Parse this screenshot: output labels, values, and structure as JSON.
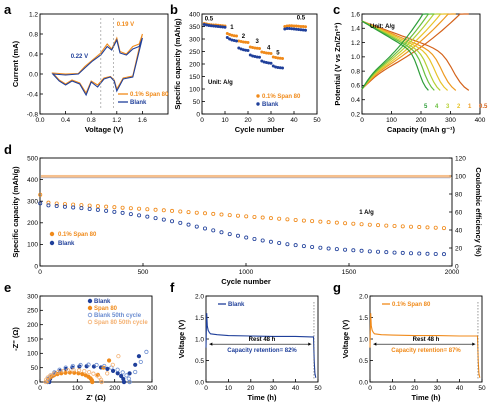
{
  "colors": {
    "blank": "#1f3f9a",
    "span80": "#f08a1a",
    "blank_light": "#6a8cd0",
    "span80_light": "#f4b070"
  },
  "chart_data": [
    {
      "id": "a",
      "type": "line",
      "label": "a",
      "xlabel": "Voltage (V)",
      "ylabel": "Current (mA)",
      "xlim": [
        0,
        2.0
      ],
      "ylim": [
        -0.8,
        1.2
      ],
      "xticks": [
        "0.0",
        "0.4",
        "0.8",
        "1.2",
        "1.6"
      ],
      "xtick_values": [
        0,
        0.4,
        0.8,
        1.2,
        1.6
      ],
      "yticks": [
        "-0.8",
        "-0.4",
        "0.0",
        "0.4",
        "0.8",
        "1.2"
      ],
      "ytick_values": [
        -0.8,
        -0.4,
        0,
        0.4,
        0.8,
        1.2
      ],
      "annotations": [
        "0.19 V",
        "0.22 V"
      ],
      "legend": [
        "0.1% Span 80",
        "Blank"
      ],
      "series": [
        {
          "name": "0.1% Span 80",
          "color_key": "span80",
          "x": [
            0.2,
            0.4,
            0.6,
            0.7,
            0.82,
            0.95,
            1.05,
            1.12,
            1.2,
            1.25,
            1.35,
            1.45,
            1.55,
            1.6,
            1.45,
            1.3,
            1.2,
            1.16,
            1.1,
            1.0,
            0.9,
            0.8,
            0.72,
            0.62,
            0.5,
            0.4,
            0.3,
            0.2
          ],
          "y": [
            0.02,
            0.0,
            0.01,
            0.15,
            0.28,
            0.42,
            0.6,
            0.5,
            0.72,
            0.45,
            0.4,
            0.55,
            0.6,
            0.8,
            -0.04,
            -0.08,
            -0.3,
            -0.12,
            -0.05,
            -0.08,
            -0.22,
            -0.14,
            -0.38,
            -0.18,
            -0.12,
            -0.2,
            -0.12,
            0.02
          ]
        },
        {
          "name": "Blank",
          "color_key": "blank",
          "x": [
            0.2,
            0.4,
            0.6,
            0.7,
            0.82,
            0.95,
            1.05,
            1.12,
            1.2,
            1.25,
            1.35,
            1.45,
            1.55,
            1.6,
            1.45,
            1.3,
            1.2,
            1.16,
            1.1,
            1.0,
            0.9,
            0.8,
            0.72,
            0.62,
            0.5,
            0.4,
            0.3,
            0.2
          ],
          "y": [
            0.0,
            -0.02,
            0.0,
            0.12,
            0.26,
            0.38,
            0.55,
            0.48,
            0.68,
            0.42,
            0.38,
            0.5,
            0.55,
            0.72,
            -0.06,
            -0.1,
            -0.34,
            -0.14,
            -0.06,
            -0.1,
            -0.26,
            -0.16,
            -0.42,
            -0.2,
            -0.14,
            -0.22,
            -0.14,
            0.0
          ]
        }
      ]
    },
    {
      "id": "b",
      "type": "scatter",
      "label": "b",
      "xlabel": "Cycle number",
      "ylabel": "Specific capacity (mAh/g)",
      "xlim": [
        0,
        50
      ],
      "ylim": [
        0,
        400
      ],
      "xticks": [
        "0",
        "10",
        "20",
        "30",
        "40",
        "50"
      ],
      "xtick_values": [
        0,
        10,
        20,
        30,
        40,
        50
      ],
      "yticks": [
        "0",
        "50",
        "100",
        "150",
        "200",
        "250",
        "300",
        "350",
        "400"
      ],
      "ytick_values": [
        0,
        50,
        100,
        150,
        200,
        250,
        300,
        350,
        400
      ],
      "unit_note": "Unit: A/g",
      "rate_labels": [
        {
          "text": "0.5",
          "x": 3,
          "y": 375
        },
        {
          "text": "1",
          "x": 13,
          "y": 340
        },
        {
          "text": "2",
          "x": 18,
          "y": 305
        },
        {
          "text": "3",
          "x": 24,
          "y": 285
        },
        {
          "text": "4",
          "x": 29,
          "y": 258
        },
        {
          "text": "5",
          "x": 33,
          "y": 238
        },
        {
          "text": "0.5",
          "x": 43,
          "y": 378
        }
      ],
      "legend": [
        "0.1% Span 80",
        "Blank"
      ],
      "series": [
        {
          "name": "0.1% Span 80",
          "color_key": "span80",
          "x": [
            1,
            2,
            3,
            4,
            5,
            6,
            7,
            8,
            9,
            10,
            11,
            12,
            13,
            14,
            15,
            16,
            17,
            18,
            19,
            20,
            21,
            22,
            23,
            24,
            25,
            26,
            27,
            28,
            29,
            30,
            31,
            32,
            33,
            34,
            35,
            36,
            37,
            38,
            39,
            40,
            41,
            42,
            43,
            44,
            45
          ],
          "y": [
            362,
            360,
            358,
            357,
            356,
            356,
            355,
            354,
            353,
            352,
            322,
            318,
            315,
            313,
            312,
            292,
            290,
            288,
            287,
            286,
            268,
            266,
            264,
            263,
            262,
            248,
            246,
            244,
            243,
            242,
            228,
            226,
            224,
            223,
            222,
            350,
            352,
            353,
            353,
            352,
            352,
            351,
            350,
            350,
            349
          ]
        },
        {
          "name": "Blank",
          "color_key": "blank",
          "x": [
            1,
            2,
            3,
            4,
            5,
            6,
            7,
            8,
            9,
            10,
            11,
            12,
            13,
            14,
            15,
            16,
            17,
            18,
            19,
            20,
            21,
            22,
            23,
            24,
            25,
            26,
            27,
            28,
            29,
            30,
            31,
            32,
            33,
            34,
            35,
            36,
            37,
            38,
            39,
            40,
            41,
            42,
            43,
            44,
            45
          ],
          "y": [
            358,
            356,
            354,
            353,
            352,
            351,
            350,
            349,
            348,
            347,
            306,
            300,
            296,
            294,
            292,
            264,
            260,
            257,
            255,
            254,
            236,
            232,
            230,
            228,
            227,
            212,
            208,
            206,
            204,
            203,
            192,
            188,
            186,
            185,
            184,
            340,
            342,
            342,
            341,
            340,
            339,
            338,
            337,
            336,
            335
          ]
        }
      ]
    },
    {
      "id": "c",
      "type": "line",
      "label": "c",
      "xlabel": "Capacity (mAh g⁻¹)",
      "ylabel": "Potential (V vs Zn/Zn²⁺)",
      "xlim": [
        0,
        400
      ],
      "ylim": [
        0.2,
        1.6
      ],
      "xticks": [
        "0",
        "100",
        "200",
        "300",
        "400"
      ],
      "xtick_values": [
        0,
        100,
        200,
        300,
        400
      ],
      "yticks": [
        "0.2",
        "0.4",
        "0.6",
        "0.8",
        "1.0",
        "1.2",
        "1.4",
        "1.6"
      ],
      "ytick_values": [
        0.2,
        0.4,
        0.6,
        0.8,
        1.0,
        1.2,
        1.4,
        1.6
      ],
      "unit_note": "Unit: A/g",
      "rate_labels": [
        "5",
        "4",
        "3",
        "2",
        "1",
        "0.5"
      ],
      "series": [
        {
          "name": "0.5",
          "color": "#d4621a",
          "cap": 362
        },
        {
          "name": "1",
          "color": "#ee9a20",
          "cap": 318
        },
        {
          "name": "2",
          "color": "#e8c42a",
          "cap": 290
        },
        {
          "name": "3",
          "color": "#b6d036",
          "cap": 265
        },
        {
          "name": "4",
          "color": "#6ac040",
          "cap": 245
        },
        {
          "name": "5",
          "color": "#2e9e3a",
          "cap": 225
        }
      ]
    },
    {
      "id": "d",
      "type": "scatter",
      "label": "d",
      "xlabel": "Cycle number",
      "ylabel": "Specific capacity (mAh/g)",
      "y2label": "Coulombic efficiency (%)",
      "xlim": [
        0,
        2000
      ],
      "ylim": [
        0,
        500
      ],
      "y2lim": [
        0,
        120
      ],
      "xticks": [
        "0",
        "500",
        "1000",
        "1500",
        "2000"
      ],
      "xtick_values": [
        0,
        500,
        1000,
        1500,
        2000
      ],
      "yticks": [
        "0",
        "100",
        "200",
        "300",
        "400",
        "500"
      ],
      "ytick_values": [
        0,
        100,
        200,
        300,
        400,
        500
      ],
      "y2ticks": [
        "0",
        "20",
        "40",
        "60",
        "80",
        "100",
        "120"
      ],
      "y2tick_values": [
        0,
        20,
        40,
        60,
        80,
        100,
        120
      ],
      "rate_note": "1 A/g",
      "legend": [
        "0.1% Span 80",
        "Blank"
      ],
      "series": [
        {
          "name": "0.1% Span 80",
          "color_key": "span80",
          "x": [
            1,
            20,
            50,
            100,
            200,
            300,
            400,
            500,
            600,
            700,
            800,
            900,
            1000,
            1100,
            1200,
            1300,
            1400,
            1500,
            1600,
            1700,
            1800,
            1900,
            2000
          ],
          "y": [
            330,
            296,
            292,
            288,
            282,
            276,
            270,
            264,
            258,
            251,
            244,
            237,
            230,
            223,
            216,
            209,
            203,
            197,
            191,
            186,
            182,
            178,
            174
          ]
        },
        {
          "name": "Blank",
          "color_key": "blank",
          "x": [
            1,
            20,
            50,
            100,
            200,
            300,
            400,
            500,
            600,
            700,
            800,
            900,
            1000,
            1100,
            1200,
            1300,
            1400,
            1500,
            1600,
            1700,
            1800,
            1900,
            2000
          ],
          "y": [
            290,
            282,
            280,
            276,
            268,
            258,
            246,
            232,
            215,
            196,
            174,
            152,
            132,
            115,
            101,
            90,
            81,
            74,
            68,
            63,
            59,
            56,
            54
          ]
        },
        {
          "name": "CE",
          "color_key": "span80_light",
          "y2": 99.5
        }
      ]
    },
    {
      "id": "e",
      "type": "scatter",
      "label": "e",
      "xlabel": "Z' (Ω)",
      "ylabel": "-Z'' (Ω)",
      "xlim": [
        0,
        300
      ],
      "ylim": [
        0,
        300
      ],
      "xticks": [
        "0",
        "100",
        "200",
        "300"
      ],
      "xtick_values": [
        0,
        100,
        200,
        300
      ],
      "yticks": [
        "0",
        "50",
        "100",
        "150",
        "200",
        "250",
        "300"
      ],
      "ytick_values": [
        0,
        50,
        100,
        150,
        200,
        250,
        300
      ],
      "legend": [
        "Blank",
        "Span 80",
        "Blank 50th cycle",
        "Span 80 50th cycle"
      ],
      "series": [
        {
          "name": "Blank",
          "color_key": "blank",
          "filled": true,
          "center": 125,
          "radius": 100,
          "tail": [
            [
              225,
              0
            ],
            [
              240,
              30
            ],
            [
              255,
              60
            ],
            [
              265,
              90
            ]
          ]
        },
        {
          "name": "Span 80",
          "color_key": "span80",
          "filled": true,
          "center": 80,
          "radius": 60,
          "tail": [
            [
              140,
              0
            ],
            [
              155,
              25
            ],
            [
              170,
              50
            ],
            [
              185,
              75
            ]
          ]
        },
        {
          "name": "Blank 50th cycle",
          "color_key": "blank_light",
          "filled": false,
          "center": 130,
          "radius": 110,
          "tail": [
            [
              240,
              0
            ],
            [
              255,
              35
            ],
            [
              270,
              70
            ],
            [
              285,
              105
            ]
          ]
        },
        {
          "name": "Span 80 50th cycle",
          "color_key": "span80_light",
          "filled": false,
          "center": 90,
          "radius": 75,
          "tail": [
            [
              165,
              0
            ],
            [
              180,
              30
            ],
            [
              195,
              60
            ],
            [
              210,
              90
            ]
          ]
        }
      ]
    },
    {
      "id": "f",
      "type": "line",
      "label": "f",
      "xlabel": "Time (h)",
      "ylabel": "Voltage (V)",
      "xlim": [
        0,
        50
      ],
      "ylim": [
        0,
        2.0
      ],
      "xticks": [
        "0",
        "10",
        "20",
        "30",
        "40",
        "50"
      ],
      "xtick_values": [
        0,
        10,
        20,
        30,
        40,
        50
      ],
      "yticks": [
        "0.0",
        "0.5",
        "1.0",
        "1.5",
        "2.0"
      ],
      "ytick_values": [
        0,
        0.5,
        1.0,
        1.5,
        2.0
      ],
      "legend": [
        "Blank"
      ],
      "rest_note": "Rest 48 h",
      "retention_note": "Capacity retention= 82%",
      "series": [
        {
          "name": "Blank",
          "color_key": "blank",
          "x": [
            0,
            0.3,
            0.6,
            1.0,
            1.5,
            2,
            5,
            10,
            20,
            30,
            40,
            47,
            48,
            48.3,
            48.6,
            49
          ],
          "y": [
            0.8,
            1.6,
            1.3,
            1.2,
            1.15,
            1.12,
            1.1,
            1.08,
            1.07,
            1.06,
            1.06,
            1.05,
            1.05,
            0.5,
            0.2,
            0.1
          ]
        }
      ]
    },
    {
      "id": "g",
      "type": "line",
      "label": "g",
      "xlabel": "Time (h)",
      "ylabel": "Voltage (V)",
      "xlim": [
        0,
        50
      ],
      "ylim": [
        0,
        2.0
      ],
      "xticks": [
        "0",
        "10",
        "20",
        "30",
        "40",
        "50"
      ],
      "xtick_values": [
        0,
        10,
        20,
        30,
        40,
        50
      ],
      "yticks": [
        "0.0",
        "0.5",
        "1.0",
        "1.5",
        "2.0"
      ],
      "ytick_values": [
        0,
        0.5,
        1.0,
        1.5,
        2.0
      ],
      "legend": [
        "0.1% Span 80"
      ],
      "rest_note": "Rest 48 h",
      "retention_note": "Capacity retention= 87%",
      "series": [
        {
          "name": "0.1% Span 80",
          "color_key": "span80",
          "x": [
            0,
            0.3,
            0.6,
            1.0,
            1.5,
            2,
            5,
            10,
            20,
            30,
            40,
            47,
            48,
            48.3,
            48.6,
            49
          ],
          "y": [
            0.8,
            1.6,
            1.3,
            1.2,
            1.15,
            1.12,
            1.1,
            1.09,
            1.08,
            1.08,
            1.07,
            1.07,
            1.07,
            0.5,
            0.2,
            0.1
          ]
        }
      ]
    }
  ]
}
